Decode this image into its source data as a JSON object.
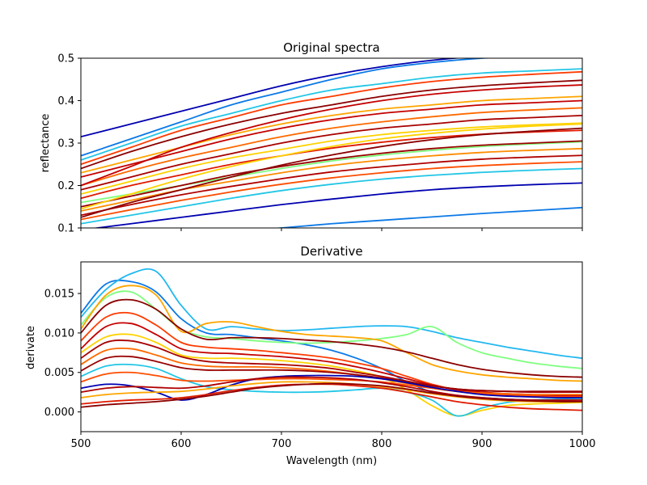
{
  "figure": {
    "xlabel": "Wavelength (nm)",
    "xticks": [
      "500",
      "600",
      "700",
      "800",
      "900",
      "1000"
    ]
  },
  "chart_data": [
    {
      "type": "line",
      "title": "Original spectra",
      "xlabel": "",
      "ylabel": "reflectance",
      "xlim": [
        500,
        1000
      ],
      "ylim": [
        0.1,
        0.5
      ],
      "xtick_values": [
        500,
        600,
        700,
        800,
        900,
        1000
      ],
      "ytick_values": [
        0.1,
        0.2,
        0.3,
        0.4,
        0.5
      ],
      "ytick_labels": [
        "0.1",
        "0.2",
        "0.3",
        "0.4",
        "0.5"
      ],
      "x": [
        500,
        550,
        600,
        650,
        700,
        750,
        800,
        850,
        900,
        950,
        1000
      ],
      "grid": false,
      "legend": "none",
      "series": [
        {
          "color": "#0000b0",
          "values": [
            0.315,
            0.345,
            0.375,
            0.405,
            0.435,
            0.46,
            0.48,
            0.495,
            0.505,
            0.51,
            0.515
          ]
        },
        {
          "color": "#0b78e6",
          "values": [
            0.27,
            0.31,
            0.35,
            0.39,
            0.42,
            0.45,
            0.475,
            0.49,
            0.5,
            0.505,
            0.51
          ]
        },
        {
          "color": "#22c6e6",
          "values": [
            0.26,
            0.3,
            0.34,
            0.37,
            0.4,
            0.425,
            0.44,
            0.455,
            0.465,
            0.47,
            0.475
          ]
        },
        {
          "color": "#ff3a00",
          "values": [
            0.25,
            0.29,
            0.33,
            0.36,
            0.39,
            0.41,
            0.43,
            0.445,
            0.455,
            0.462,
            0.468
          ]
        },
        {
          "color": "#8b0000",
          "values": [
            0.24,
            0.28,
            0.315,
            0.345,
            0.37,
            0.39,
            0.41,
            0.425,
            0.435,
            0.442,
            0.448
          ]
        },
        {
          "color": "#ffa500",
          "values": [
            0.23,
            0.26,
            0.29,
            0.32,
            0.345,
            0.365,
            0.38,
            0.39,
            0.4,
            0.405,
            0.41
          ]
        },
        {
          "color": "#c40000",
          "values": [
            0.22,
            0.25,
            0.28,
            0.31,
            0.335,
            0.355,
            0.37,
            0.38,
            0.39,
            0.395,
            0.4
          ]
        },
        {
          "color": "#ff6a00",
          "values": [
            0.2,
            0.235,
            0.265,
            0.29,
            0.315,
            0.335,
            0.35,
            0.362,
            0.372,
            0.378,
            0.383
          ]
        },
        {
          "color": "#a80000",
          "values": [
            0.19,
            0.22,
            0.25,
            0.275,
            0.3,
            0.32,
            0.335,
            0.345,
            0.355,
            0.36,
            0.365
          ]
        },
        {
          "color": "#ffd200",
          "values": [
            0.18,
            0.21,
            0.24,
            0.265,
            0.285,
            0.305,
            0.32,
            0.33,
            0.338,
            0.343,
            0.347
          ]
        },
        {
          "color": "#e01a00",
          "values": [
            0.17,
            0.2,
            0.225,
            0.25,
            0.27,
            0.288,
            0.302,
            0.313,
            0.321,
            0.326,
            0.33
          ]
        },
        {
          "color": "#7fff7f",
          "values": [
            0.16,
            0.18,
            0.2,
            0.22,
            0.24,
            0.258,
            0.272,
            0.283,
            0.292,
            0.298,
            0.303
          ]
        },
        {
          "color": "#990000",
          "values": [
            0.15,
            0.175,
            0.2,
            0.225,
            0.245,
            0.262,
            0.276,
            0.287,
            0.295,
            0.3,
            0.305
          ]
        },
        {
          "color": "#ff8c00",
          "values": [
            0.14,
            0.165,
            0.19,
            0.21,
            0.23,
            0.247,
            0.26,
            0.27,
            0.278,
            0.283,
            0.287
          ]
        },
        {
          "color": "#b00000",
          "values": [
            0.13,
            0.155,
            0.178,
            0.198,
            0.216,
            0.232,
            0.244,
            0.254,
            0.262,
            0.267,
            0.271
          ]
        },
        {
          "color": "#ff4d00",
          "values": [
            0.12,
            0.143,
            0.165,
            0.185,
            0.203,
            0.218,
            0.23,
            0.24,
            0.247,
            0.252,
            0.256
          ]
        },
        {
          "color": "#22c6e6",
          "values": [
            0.11,
            0.13,
            0.15,
            0.17,
            0.188,
            0.203,
            0.215,
            0.224,
            0.231,
            0.236,
            0.24
          ]
        },
        {
          "color": "#0000b0",
          "values": [
            0.095,
            0.11,
            0.125,
            0.14,
            0.155,
            0.168,
            0.18,
            0.19,
            0.197,
            0.202,
            0.206
          ]
        },
        {
          "color": "#0b78e6",
          "values": [
            0.05,
            0.065,
            0.078,
            0.09,
            0.1,
            0.11,
            0.118,
            0.126,
            0.134,
            0.141,
            0.148
          ]
        },
        {
          "color": "#c40000",
          "values": [
            0.2,
            0.245,
            0.29,
            0.325,
            0.355,
            0.38,
            0.4,
            0.415,
            0.425,
            0.432,
            0.437
          ]
        },
        {
          "color": "#ffd200",
          "values": [
            0.145,
            0.18,
            0.215,
            0.245,
            0.27,
            0.292,
            0.31,
            0.323,
            0.333,
            0.34,
            0.345
          ]
        },
        {
          "color": "#8b0000",
          "values": [
            0.125,
            0.16,
            0.19,
            0.22,
            0.248,
            0.272,
            0.292,
            0.308,
            0.32,
            0.328,
            0.335
          ]
        }
      ]
    },
    {
      "type": "line",
      "title": "Derivative",
      "xlabel": "Wavelength (nm)",
      "ylabel": "derivate",
      "xlim": [
        500,
        1000
      ],
      "ylim": [
        -0.0025,
        0.019
      ],
      "xtick_values": [
        500,
        600,
        700,
        800,
        900,
        1000
      ],
      "xtick_labels": [
        "500",
        "600",
        "700",
        "800",
        "900",
        "1000"
      ],
      "ytick_values": [
        0.0,
        0.005,
        0.01,
        0.015
      ],
      "ytick_labels": [
        "0.000",
        "0.005",
        "0.010",
        "0.015"
      ],
      "x": [
        500,
        525,
        550,
        575,
        600,
        625,
        650,
        675,
        700,
        725,
        750,
        775,
        800,
        825,
        850,
        875,
        900,
        925,
        950,
        975,
        1000
      ],
      "grid": false,
      "legend": "none",
      "series": [
        {
          "color": "#0b78e6",
          "values": [
            0.0125,
            0.0162,
            0.0165,
            0.0152,
            0.0118,
            0.01,
            0.0098,
            0.0094,
            0.009,
            0.0085,
            0.0078,
            0.0068,
            0.0055,
            0.0038,
            0.0025,
            0.002,
            0.0018,
            0.0016,
            0.0015,
            0.0014,
            0.0013
          ]
        },
        {
          "color": "#22b8f0",
          "values": [
            0.012,
            0.0155,
            0.0175,
            0.0178,
            0.0135,
            0.0105,
            0.0108,
            0.0105,
            0.0103,
            0.0104,
            0.0106,
            0.0108,
            0.0109,
            0.0108,
            0.0102,
            0.0094,
            0.0088,
            0.0082,
            0.0077,
            0.0072,
            0.0068
          ]
        },
        {
          "color": "#7fff7f",
          "values": [
            0.011,
            0.0145,
            0.0152,
            0.013,
            0.0105,
            0.0095,
            0.0093,
            0.009,
            0.0088,
            0.0087,
            0.0088,
            0.009,
            0.0093,
            0.0098,
            0.0108,
            0.0088,
            0.0075,
            0.0068,
            0.0062,
            0.0058,
            0.0055
          ]
        },
        {
          "color": "#ffa500",
          "values": [
            0.0105,
            0.0148,
            0.016,
            0.0148,
            0.0102,
            0.0112,
            0.0114,
            0.0108,
            0.0102,
            0.0098,
            0.0096,
            0.0094,
            0.009,
            0.0075,
            0.006,
            0.0052,
            0.0047,
            0.0044,
            0.0042,
            0.004,
            0.0039
          ]
        },
        {
          "color": "#8b0000",
          "values": [
            0.01,
            0.0135,
            0.0142,
            0.013,
            0.0105,
            0.0092,
            0.0094,
            0.0094,
            0.0093,
            0.0091,
            0.0089,
            0.0086,
            0.0082,
            0.0076,
            0.0068,
            0.006,
            0.0054,
            0.005,
            0.0047,
            0.0045,
            0.0044
          ]
        },
        {
          "color": "#ff3a00",
          "values": [
            0.009,
            0.012,
            0.0125,
            0.011,
            0.0088,
            0.0082,
            0.008,
            0.0078,
            0.0075,
            0.0072,
            0.0068,
            0.0062,
            0.0055,
            0.0045,
            0.0035,
            0.0028,
            0.0024,
            0.0022,
            0.0021,
            0.002,
            0.002
          ]
        },
        {
          "color": "#c40000",
          "values": [
            0.008,
            0.0108,
            0.0112,
            0.0098,
            0.008,
            0.0075,
            0.0074,
            0.0072,
            0.007,
            0.0067,
            0.0063,
            0.0057,
            0.005,
            0.0042,
            0.0034,
            0.0028,
            0.0025,
            0.0023,
            0.0022,
            0.0021,
            0.0021
          ]
        },
        {
          "color": "#ffd200",
          "values": [
            0.0075,
            0.0095,
            0.0098,
            0.0088,
            0.0072,
            0.0068,
            0.0068,
            0.0067,
            0.0065,
            0.0062,
            0.0058,
            0.0052,
            0.0044,
            0.0028,
            0.0008,
            -0.0005,
            0.0002,
            0.0008,
            0.001,
            0.0011,
            0.0012
          ]
        },
        {
          "color": "#a80000",
          "values": [
            0.0068,
            0.0088,
            0.009,
            0.0082,
            0.007,
            0.0064,
            0.0062,
            0.0061,
            0.006,
            0.0058,
            0.0055,
            0.005,
            0.0045,
            0.0039,
            0.0033,
            0.0029,
            0.0027,
            0.0026,
            0.0025,
            0.0025,
            0.0025
          ]
        },
        {
          "color": "#ff6a00",
          "values": [
            0.006,
            0.0078,
            0.008,
            0.0072,
            0.0062,
            0.0058,
            0.0057,
            0.0057,
            0.0056,
            0.0054,
            0.0051,
            0.0047,
            0.0042,
            0.0036,
            0.003,
            0.0026,
            0.0024,
            0.0023,
            0.0022,
            0.0022,
            0.0022
          ]
        },
        {
          "color": "#990000",
          "values": [
            0.0052,
            0.0068,
            0.007,
            0.0064,
            0.0056,
            0.0053,
            0.0053,
            0.0053,
            0.0053,
            0.0052,
            0.005,
            0.0047,
            0.0043,
            0.0038,
            0.0033,
            0.0029,
            0.0027,
            0.0026,
            0.0026,
            0.0026,
            0.0026
          ]
        },
        {
          "color": "#22c6e6",
          "values": [
            0.0045,
            0.0058,
            0.006,
            0.0055,
            0.0042,
            0.0032,
            0.0028,
            0.0026,
            0.0025,
            0.0025,
            0.0026,
            0.0028,
            0.003,
            0.0025,
            0.0015,
            -0.0005,
            0.0005,
            0.0012,
            0.0015,
            0.0016,
            0.0017
          ]
        },
        {
          "color": "#ff4d00",
          "values": [
            0.0038,
            0.0048,
            0.005,
            0.0046,
            0.004,
            0.0039,
            0.004,
            0.0041,
            0.0042,
            0.0042,
            0.0041,
            0.004,
            0.0038,
            0.0034,
            0.003,
            0.0026,
            0.0023,
            0.0021,
            0.002,
            0.0019,
            0.0019
          ]
        },
        {
          "color": "#0000b0",
          "values": [
            0.003,
            0.0035,
            0.0033,
            0.0025,
            0.0015,
            0.0022,
            0.0034,
            0.0042,
            0.0045,
            0.0046,
            0.0046,
            0.0045,
            0.0042,
            0.0037,
            0.0031,
            0.0026,
            0.0022,
            0.002,
            0.0019,
            0.0018,
            0.0018
          ]
        },
        {
          "color": "#b00000",
          "values": [
            0.0025,
            0.003,
            0.0032,
            0.0031,
            0.003,
            0.0033,
            0.0038,
            0.0042,
            0.0044,
            0.0044,
            0.0043,
            0.0041,
            0.0037,
            0.0032,
            0.0026,
            0.0021,
            0.0018,
            0.0016,
            0.0015,
            0.0015,
            0.0015
          ]
        },
        {
          "color": "#ffa500",
          "values": [
            0.0018,
            0.0022,
            0.0024,
            0.0025,
            0.0026,
            0.0029,
            0.0033,
            0.0036,
            0.0038,
            0.0038,
            0.0037,
            0.0035,
            0.0032,
            0.0028,
            0.0023,
            0.0019,
            0.0016,
            0.0014,
            0.0013,
            0.0013,
            0.0013
          ]
        },
        {
          "color": "#e01a00",
          "values": [
            0.001,
            0.0013,
            0.0015,
            0.0016,
            0.0018,
            0.0022,
            0.0027,
            0.0031,
            0.0034,
            0.0035,
            0.0035,
            0.0033,
            0.003,
            0.0025,
            0.0019,
            0.0013,
            0.0009,
            0.0006,
            0.0004,
            0.0003,
            0.0002
          ]
        },
        {
          "color": "#8b0000",
          "values": [
            0.0006,
            0.0009,
            0.0011,
            0.0013,
            0.0016,
            0.002,
            0.0025,
            0.003,
            0.0033,
            0.0035,
            0.0036,
            0.0035,
            0.0033,
            0.0029,
            0.0024,
            0.002,
            0.0017,
            0.0015,
            0.0014,
            0.0013,
            0.0013
          ]
        }
      ]
    }
  ]
}
